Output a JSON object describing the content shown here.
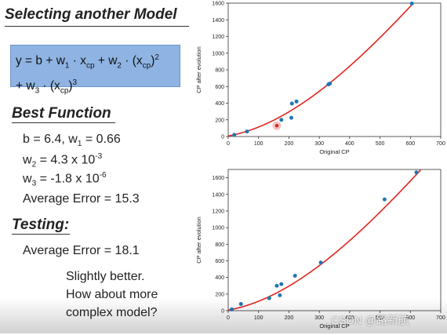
{
  "slide": {
    "title": "Selecting another Model",
    "formula_line1_parts": [
      "y = b + w",
      "1",
      " · x",
      "cp",
      " + w",
      "2",
      " · (x",
      "cp",
      ")",
      "2"
    ],
    "formula_line2_parts": [
      "+ w",
      "3",
      " · (x",
      "cp",
      ")",
      "3"
    ],
    "best_function_heading": "Best Function",
    "b_line": [
      "b = 6.4, w",
      "1",
      " = 0.66"
    ],
    "w2_line": [
      "w",
      "2",
      " = 4.3 x 10",
      "-3"
    ],
    "w3_line": [
      "w",
      "3",
      " = -1.8 x 10",
      "-6"
    ],
    "train_error": "Average Error = 15.3",
    "testing_heading": "Testing:",
    "test_error": "Average Error = 18.1",
    "note_lines": [
      "Slightly better.",
      "How about more",
      "complex model?"
    ],
    "watermark": "CSDN @路新航"
  },
  "chart_data": [
    {
      "type": "scatter",
      "xlabel": "Original CP",
      "ylabel": "CP after evolution",
      "xlim": [
        0,
        700
      ],
      "ylim": [
        0,
        1600
      ],
      "xticks": [
        0,
        100,
        200,
        300,
        400,
        500,
        600,
        700
      ],
      "yticks": [
        0,
        200,
        400,
        600,
        800,
        1000,
        1200,
        1400,
        1600
      ],
      "points": [
        [
          20,
          20
        ],
        [
          62,
          60
        ],
        [
          175,
          200
        ],
        [
          208,
          225
        ],
        [
          210,
          395
        ],
        [
          225,
          420
        ],
        [
          330,
          625
        ],
        [
          335,
          635
        ],
        [
          605,
          1595
        ]
      ],
      "highlight_point": [
        160,
        130
      ],
      "curve_coefficients": {
        "b": 6.4,
        "w1": 0.66,
        "w2": 0.0043,
        "w3": -1.8e-06
      },
      "colors": {
        "points": "#1f77b4",
        "curve": "#e0261f",
        "highlight": "#e0261f"
      }
    },
    {
      "type": "scatter",
      "xlabel": "Original CP",
      "ylabel": "CP after evolution",
      "xlim": [
        0,
        700
      ],
      "ylim": [
        0,
        1700
      ],
      "xticks": [
        0,
        100,
        200,
        300,
        400,
        500,
        600,
        700
      ],
      "yticks": [
        0,
        200,
        400,
        600,
        800,
        1000,
        1200,
        1400,
        1600
      ],
      "points": [
        [
          12,
          15
        ],
        [
          42,
          80
        ],
        [
          135,
          150
        ],
        [
          160,
          300
        ],
        [
          170,
          185
        ],
        [
          175,
          320
        ],
        [
          220,
          420
        ],
        [
          305,
          580
        ],
        [
          515,
          1340
        ],
        [
          620,
          1665
        ]
      ],
      "curve_coefficients": {
        "b": 6.4,
        "w1": 0.66,
        "w2": 0.0043,
        "w3": -1.8e-06
      },
      "colors": {
        "points": "#1f77b4",
        "curve": "#e0261f"
      }
    }
  ]
}
